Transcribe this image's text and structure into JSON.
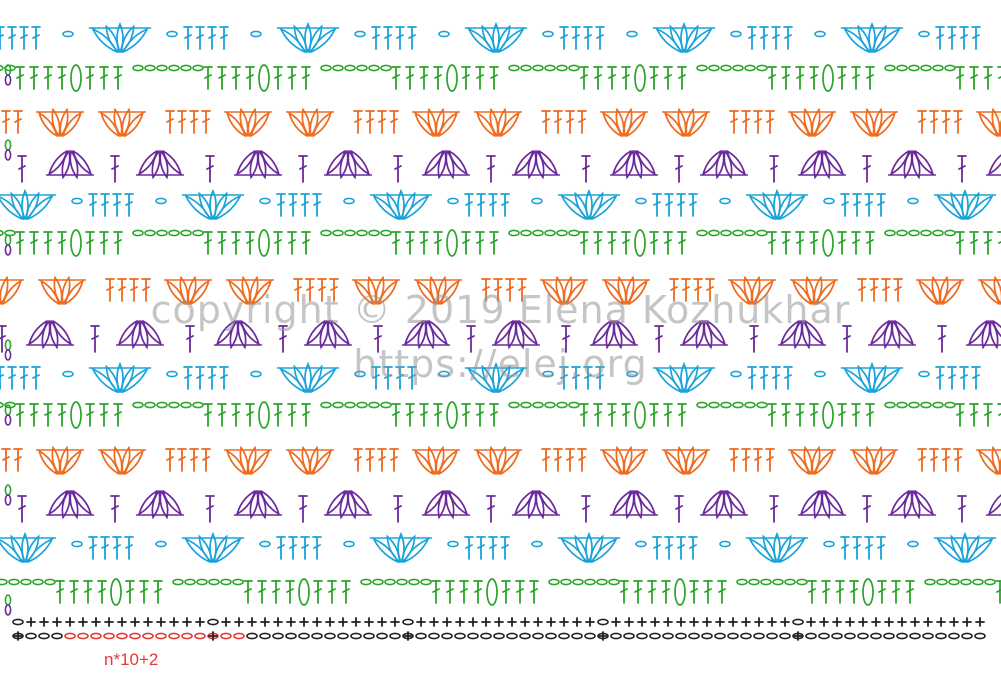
{
  "diagram": {
    "repeat_formula": "n*10+2",
    "watermark_line1": "copyright © 2019 Elena Kozhukhar",
    "watermark_line2": "https://elej.org"
  },
  "colors": {
    "blue": "#1aa3d9",
    "green": "#2aa52a",
    "orange": "#ee6a1e",
    "purple": "#6b2a9c",
    "black": "#222222",
    "red": "#e53935",
    "watermark": "#969696"
  },
  "legend_symbols": [
    "chain-oval",
    "single-crochet-plus",
    "double-crochet-t",
    "cluster-petal",
    "slip-stitch-dot"
  ]
}
